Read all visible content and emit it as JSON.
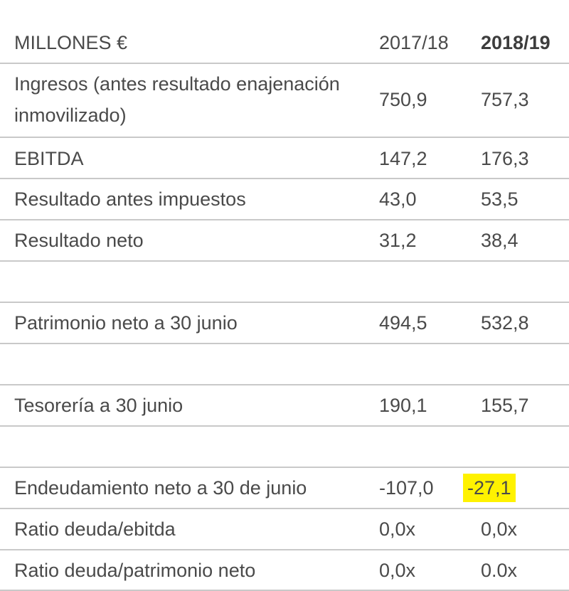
{
  "table": {
    "header": {
      "label": "MILLONES €",
      "col_a": "2017/18",
      "col_b": "2018/19"
    },
    "rows": [
      {
        "label_line1": "Ingresos (antes resultado enajenación",
        "label_line2": "inmovilizado)",
        "a": "750,9",
        "b": "757,3"
      },
      {
        "label": "EBITDA",
        "a": "147,2",
        "b": "176,3"
      },
      {
        "label": "Resultado antes impuestos",
        "a": "43,0",
        "b": "53,5"
      },
      {
        "label": "Resultado neto",
        "a": "31,2",
        "b": "38,4"
      },
      {
        "label": "",
        "a": "",
        "b": ""
      },
      {
        "label": "Patrimonio neto a 30 junio",
        "a": "494,5",
        "b": "532,8"
      },
      {
        "label": "",
        "a": "",
        "b": ""
      },
      {
        "label": "Tesorería a 30 junio",
        "a": "190,1",
        "b": "155,7"
      },
      {
        "label": "",
        "a": "",
        "b": ""
      },
      {
        "label": "Endeudamiento neto a 30 de junio",
        "a": "-107,0",
        "b": "-27,1"
      },
      {
        "label": "Ratio deuda/ebitda",
        "a": "0,0x",
        "b": "0,0x"
      },
      {
        "label": "Ratio deuda/patrimonio neto",
        "a": "0,0x",
        "b": "0.0x"
      }
    ],
    "highlight_color": "#fff200"
  }
}
